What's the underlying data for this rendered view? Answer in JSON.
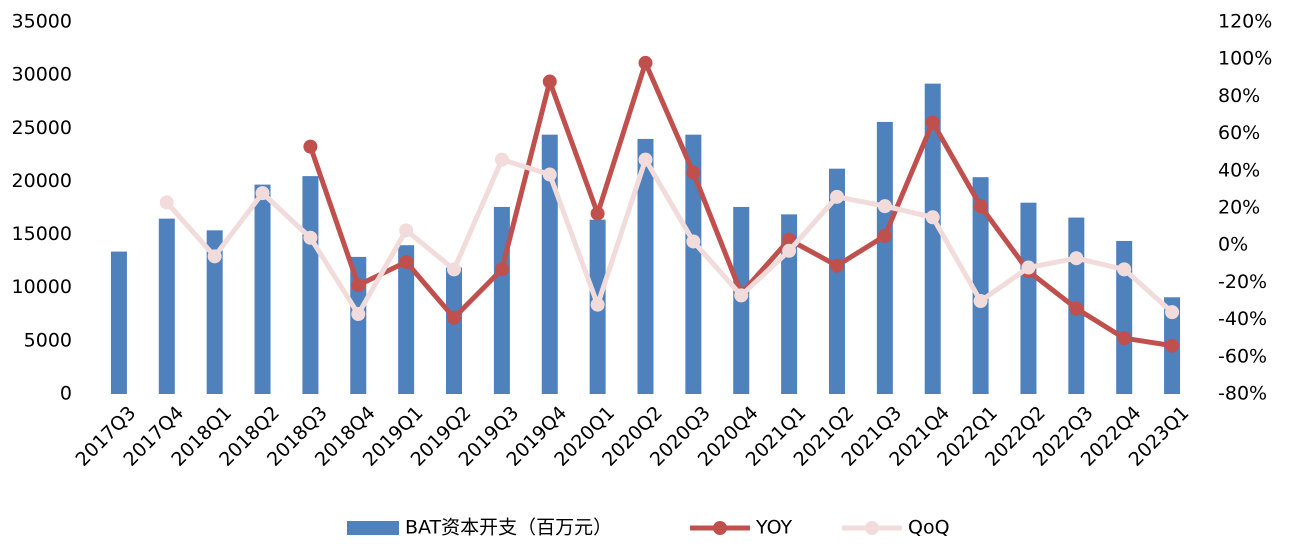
{
  "chart_data": {
    "type": "bar_line",
    "categories": [
      "2017Q3",
      "2017Q4",
      "2018Q1",
      "2018Q2",
      "2018Q3",
      "2018Q4",
      "2019Q1",
      "2019Q2",
      "2019Q3",
      "2019Q4",
      "2020Q1",
      "2020Q2",
      "2020Q3",
      "2020Q4",
      "2021Q1",
      "2021Q2",
      "2021Q3",
      "2021Q4",
      "2022Q1",
      "2022Q2",
      "2022Q3",
      "2022Q4",
      "2023Q1"
    ],
    "series": [
      {
        "name": "BAT资本开支（百万元）",
        "type": "bar",
        "color": "#4f81bd",
        "values": [
          13400,
          16500,
          15400,
          19700,
          20500,
          12900,
          14000,
          11900,
          17600,
          24400,
          16400,
          24000,
          24400,
          17600,
          16900,
          21200,
          25600,
          29200,
          20400,
          18000,
          16600,
          14400,
          9100
        ]
      },
      {
        "name": "YOY",
        "type": "line",
        "axis": "y2",
        "color": "#c0504d",
        "values": [
          null,
          null,
          null,
          null,
          53,
          -21.5,
          -9,
          -39,
          -13,
          88,
          17,
          98,
          39,
          -26,
          3,
          -11,
          5,
          66,
          21,
          -14,
          -34,
          -50,
          -54
        ]
      },
      {
        "name": "QoQ",
        "type": "line",
        "axis": "y2",
        "color": "#f2dcdb",
        "values": [
          null,
          23,
          -6,
          28,
          4,
          -37,
          8,
          -13,
          46,
          38,
          -32,
          46,
          2,
          -27,
          -3,
          26,
          21,
          15,
          -30,
          -12,
          -7,
          -13,
          -36
        ]
      }
    ],
    "ylim": [
      0,
      35000
    ],
    "yticks": [
      0,
      5000,
      10000,
      15000,
      20000,
      25000,
      30000,
      35000
    ],
    "y2lim": [
      -80,
      120
    ],
    "y2ticks": [
      {
        "value": -80,
        "label": "-80%"
      },
      {
        "value": -60,
        "label": "-60%"
      },
      {
        "value": -40,
        "label": "-40%"
      },
      {
        "value": -20,
        "label": "-20%"
      },
      {
        "value": 0,
        "label": "0%"
      },
      {
        "value": 20,
        "label": "20%"
      },
      {
        "value": 40,
        "label": "40%"
      },
      {
        "value": 60,
        "label": "60%"
      },
      {
        "value": 80,
        "label": "80%"
      },
      {
        "value": 100,
        "label": "100%"
      },
      {
        "value": 120,
        "label": "120%"
      }
    ],
    "legend": "bottom"
  }
}
